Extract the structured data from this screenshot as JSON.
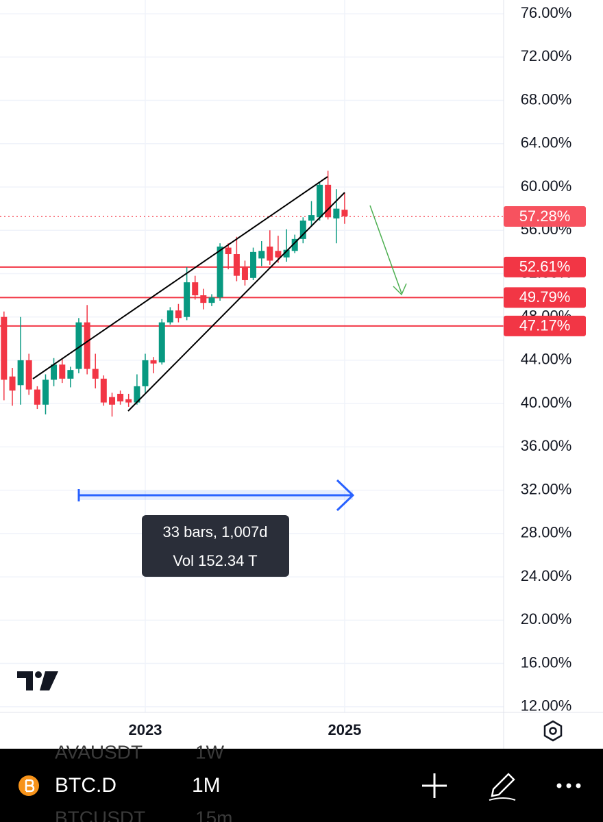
{
  "chart_data": {
    "type": "candlestick",
    "x": [
      2021.583,
      2021.667,
      2021.75,
      2021.833,
      2021.917,
      2022,
      2022.083,
      2022.167,
      2022.25,
      2022.333,
      2022.417,
      2022.5,
      2022.583,
      2022.667,
      2022.75,
      2022.833,
      2022.917,
      2023,
      2023.083,
      2023.167,
      2023.25,
      2023.333,
      2023.417,
      2023.5,
      2023.583,
      2023.667,
      2023.75,
      2023.833,
      2023.917,
      2024,
      2024.083,
      2024.167,
      2024.25,
      2024.333,
      2024.417,
      2024.5,
      2024.583,
      2024.667,
      2024.75,
      2024.833,
      2024.917,
      2025
    ],
    "open": [
      48.0,
      42.5,
      41.7,
      44.0,
      41.3,
      39.9,
      42.2,
      43.6,
      42.3,
      43.2,
      47.5,
      43.2,
      42.3,
      40.6,
      40.9,
      40.4,
      40.1,
      41.6,
      44.0,
      43.8,
      47.5,
      48.6,
      48.0,
      51.2,
      50.0,
      49.3,
      49.8,
      54.4,
      53.8,
      52.6,
      51.6,
      53.4,
      54.5,
      54.1,
      53.5,
      54.1,
      55.2,
      56.9,
      57.2,
      60.2,
      57.1,
      57.9
    ],
    "high": [
      48.5,
      43.3,
      48.0,
      44.6,
      41.6,
      42.7,
      44.2,
      44.1,
      43.4,
      47.9,
      49.1,
      44.6,
      42.6,
      41.0,
      41.2,
      40.9,
      42.7,
      44.6,
      44.3,
      47.8,
      48.9,
      49.2,
      52.6,
      51.8,
      50.6,
      50.1,
      54.8,
      54.8,
      55.4,
      53.2,
      54.4,
      55.0,
      56.0,
      55.5,
      56.1,
      55.6,
      57.2,
      58.7,
      60.4,
      61.5,
      59.8,
      59.5
    ],
    "low": [
      40.3,
      39.8,
      39.9,
      40.8,
      39.5,
      39.0,
      41.6,
      41.9,
      41.5,
      42.8,
      42.7,
      41.4,
      39.8,
      38.8,
      39.9,
      39.7,
      39.9,
      41.0,
      42.8,
      43.6,
      47.3,
      47.5,
      47.7,
      49.6,
      48.7,
      49.0,
      49.5,
      52.4,
      51.3,
      50.9,
      51.4,
      52.7,
      52.8,
      53.0,
      53.1,
      53.9,
      54.8,
      56.4,
      56.9,
      57.0,
      54.8,
      56.6
    ],
    "close": [
      42.2,
      41.2,
      44.0,
      41.3,
      39.9,
      42.2,
      43.6,
      42.3,
      43.1,
      47.5,
      43.2,
      42.3,
      40.1,
      39.9,
      40.2,
      40.1,
      41.6,
      44.0,
      43.7,
      47.5,
      48.6,
      47.9,
      51.2,
      50.0,
      49.3,
      49.8,
      54.5,
      53.8,
      51.8,
      51.4,
      54.0,
      54.1,
      53.2,
      53.5,
      54.2,
      55.2,
      56.9,
      57.4,
      60.2,
      57.2,
      58.0,
      57.3
    ],
    "up_color": "#089981",
    "down_color": "#f23645",
    "xlim": [
      2021.543,
      2026.595
    ],
    "xticks": [
      2023,
      2025
    ],
    "ylim": [
      11.48,
      77.27
    ],
    "yticks": [
      {
        "value": 76,
        "label": "76.00%"
      },
      {
        "value": 72,
        "label": "72.00%"
      },
      {
        "value": 68,
        "label": "68.00%"
      },
      {
        "value": 64,
        "label": "64.00%"
      },
      {
        "value": 60,
        "label": "60.00%"
      },
      {
        "value": 56,
        "label": "56.00%"
      },
      {
        "value": 52,
        "label": "52.00%"
      },
      {
        "value": 48,
        "label": "48.00%"
      },
      {
        "value": 44,
        "label": "44.00%"
      },
      {
        "value": 40,
        "label": "40.00%"
      },
      {
        "value": 36,
        "label": "36.00%"
      },
      {
        "value": 32,
        "label": "32.00%"
      },
      {
        "value": 28,
        "label": "28.00%"
      },
      {
        "value": 24,
        "label": "24.00%"
      },
      {
        "value": 20,
        "label": "20.00%"
      },
      {
        "value": 16,
        "label": "16.00%"
      },
      {
        "value": 12,
        "label": "12.00%"
      }
    ],
    "grid": true,
    "price_lines": [
      {
        "value": 52.61,
        "label": "52.61%",
        "color": "#f23645"
      },
      {
        "value": 49.79,
        "label": "49.79%",
        "color": "#f23645"
      },
      {
        "value": 47.17,
        "label": "47.17%",
        "color": "#f23645"
      }
    ],
    "last_price": {
      "value": 57.28,
      "label": "57.28%",
      "color": "#f7525f"
    },
    "measure": {
      "bars": "33 bars, 1,007d",
      "volume": "Vol 152.34 T"
    }
  },
  "toolbar": {
    "symbol": "BTC.D",
    "interval": "1M",
    "prev_symbol": "AVAUSDT",
    "prev_interval": "1W",
    "next_symbol": "BTCUSDT",
    "next_interval": "15m"
  }
}
